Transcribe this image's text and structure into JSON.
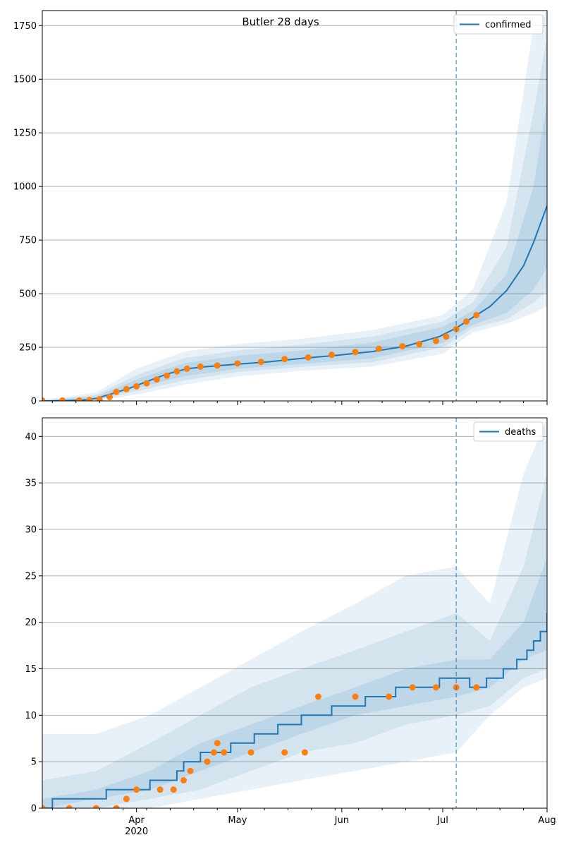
{
  "title": "Butler 28 days",
  "chart_data": [
    {
      "type": "line",
      "panel": "top",
      "legend": {
        "label": "confirmed",
        "placement": "top-right"
      },
      "xlim": [
        "2020-03-04",
        "2020-08-01"
      ],
      "ylim": [
        0,
        1820
      ],
      "yticks": [
        0,
        250,
        500,
        750,
        1000,
        1250,
        1500,
        1750
      ],
      "ytick_labels": [
        "0",
        "250",
        "500",
        "750",
        "1000",
        "1250",
        "1500",
        "1750"
      ],
      "grid": "horizontal",
      "xlabel": "",
      "ylabel": "",
      "vertical_marker_date": "2020-07-05",
      "series": [
        {
          "name": "confirmed",
          "role": "model median",
          "color": "#1f77b4",
          "dates": [
            "2020-03-04",
            "2020-03-10",
            "2020-03-16",
            "2020-03-20",
            "2020-03-25",
            "2020-03-30",
            "2020-04-04",
            "2020-04-10",
            "2020-04-16",
            "2020-04-22",
            "2020-04-30",
            "2020-05-10",
            "2020-05-20",
            "2020-05-30",
            "2020-06-10",
            "2020-06-20",
            "2020-06-30",
            "2020-07-05",
            "2020-07-10",
            "2020-07-15",
            "2020-07-20",
            "2020-07-25",
            "2020-07-28",
            "2020-08-01"
          ],
          "values": [
            0,
            1,
            4,
            12,
            35,
            60,
            90,
            125,
            150,
            160,
            170,
            182,
            198,
            212,
            230,
            255,
            300,
            340,
            390,
            440,
            515,
            630,
            740,
            910
          ]
        },
        {
          "name": "observed",
          "role": "data points",
          "color": "#ff7f0e",
          "dates": [
            "2020-03-04",
            "2020-03-10",
            "2020-03-15",
            "2020-03-18",
            "2020-03-21",
            "2020-03-24",
            "2020-03-26",
            "2020-03-29",
            "2020-04-01",
            "2020-04-04",
            "2020-04-07",
            "2020-04-10",
            "2020-04-13",
            "2020-04-16",
            "2020-04-20",
            "2020-04-25",
            "2020-05-01",
            "2020-05-08",
            "2020-05-15",
            "2020-05-22",
            "2020-05-29",
            "2020-06-05",
            "2020-06-12",
            "2020-06-19",
            "2020-06-24",
            "2020-06-29",
            "2020-07-02",
            "2020-07-05",
            "2020-07-08",
            "2020-07-11"
          ],
          "values": [
            2,
            2,
            2,
            4,
            8,
            18,
            42,
            55,
            68,
            82,
            100,
            118,
            138,
            150,
            160,
            165,
            175,
            182,
            195,
            203,
            215,
            228,
            243,
            255,
            265,
            280,
            300,
            335,
            370,
            400
          ]
        }
      ],
      "bands": [
        {
          "name": "outer",
          "opacity": 0.1,
          "dates": [
            "2020-03-04",
            "2020-03-20",
            "2020-04-01",
            "2020-04-15",
            "2020-05-01",
            "2020-05-20",
            "2020-06-10",
            "2020-07-01",
            "2020-07-10",
            "2020-07-20",
            "2020-07-28",
            "2020-08-01"
          ],
          "lower": [
            0,
            0,
            30,
            75,
            115,
            140,
            160,
            220,
            320,
            360,
            410,
            440
          ],
          "upper": [
            3,
            40,
            150,
            230,
            265,
            290,
            330,
            400,
            520,
            930,
            1750,
            1820
          ]
        },
        {
          "name": "middle",
          "opacity": 0.1,
          "dates": [
            "2020-03-04",
            "2020-03-20",
            "2020-04-01",
            "2020-04-15",
            "2020-05-01",
            "2020-05-20",
            "2020-06-10",
            "2020-07-01",
            "2020-07-10",
            "2020-07-20",
            "2020-07-28",
            "2020-08-01"
          ],
          "lower": [
            0,
            2,
            45,
            95,
            135,
            158,
            180,
            250,
            340,
            380,
            460,
            510
          ],
          "upper": [
            2,
            28,
            120,
            200,
            235,
            262,
            300,
            370,
            460,
            720,
            1350,
            1700
          ]
        },
        {
          "name": "inner",
          "opacity": 0.12,
          "dates": [
            "2020-03-04",
            "2020-03-20",
            "2020-04-01",
            "2020-04-15",
            "2020-05-01",
            "2020-05-20",
            "2020-06-10",
            "2020-07-01",
            "2020-07-10",
            "2020-07-20",
            "2020-07-28",
            "2020-08-01"
          ],
          "lower": [
            0,
            5,
            60,
            115,
            150,
            172,
            198,
            270,
            355,
            410,
            520,
            620
          ],
          "upper": [
            1,
            20,
            100,
            175,
            210,
            235,
            272,
            345,
            420,
            590,
            1000,
            1400
          ]
        }
      ]
    },
    {
      "type": "line",
      "panel": "bottom",
      "legend": {
        "label": "deaths",
        "placement": "top-right"
      },
      "xlim": [
        "2020-03-04",
        "2020-08-01"
      ],
      "ylim": [
        0,
        42
      ],
      "yticks": [
        0,
        5,
        10,
        15,
        20,
        25,
        30,
        35,
        40
      ],
      "ytick_labels": [
        "0",
        "5",
        "10",
        "15",
        "20",
        "25",
        "30",
        "35",
        "40"
      ],
      "xtick_labels": [
        "Apr",
        "May",
        "Jun",
        "Jul",
        "Aug"
      ],
      "xtick_dates": [
        "2020-04-01",
        "2020-05-01",
        "2020-06-01",
        "2020-07-01",
        "2020-08-01"
      ],
      "xtick_year": "2020",
      "grid": "horizontal",
      "xlabel": "",
      "ylabel": "",
      "vertical_marker_date": "2020-07-05",
      "series": [
        {
          "name": "deaths",
          "role": "model median (step)",
          "color": "#1f77b4",
          "dates": [
            "2020-03-04",
            "2020-03-07",
            "2020-03-23",
            "2020-03-31",
            "2020-04-05",
            "2020-04-13",
            "2020-04-15",
            "2020-04-20",
            "2020-04-25",
            "2020-04-29",
            "2020-05-06",
            "2020-05-13",
            "2020-05-20",
            "2020-05-29",
            "2020-06-08",
            "2020-06-17",
            "2020-06-30",
            "2020-07-05",
            "2020-07-09",
            "2020-07-14",
            "2020-07-19",
            "2020-07-23",
            "2020-07-26",
            "2020-07-28",
            "2020-07-30",
            "2020-08-01"
          ],
          "values": [
            0,
            1,
            2,
            2,
            3,
            4,
            5,
            6,
            6,
            7,
            8,
            9,
            10,
            11,
            12,
            13,
            14,
            14,
            13,
            14,
            15,
            16,
            17,
            18,
            19,
            21
          ]
        },
        {
          "name": "observed",
          "role": "data points",
          "color": "#ff7f0e",
          "dates": [
            "2020-03-04",
            "2020-03-12",
            "2020-03-20",
            "2020-03-26",
            "2020-03-29",
            "2020-04-01",
            "2020-04-08",
            "2020-04-12",
            "2020-04-15",
            "2020-04-17",
            "2020-04-22",
            "2020-04-24",
            "2020-04-25",
            "2020-04-27",
            "2020-05-05",
            "2020-05-15",
            "2020-05-21",
            "2020-05-25",
            "2020-06-05",
            "2020-06-15",
            "2020-06-22",
            "2020-06-29",
            "2020-07-05",
            "2020-07-11"
          ],
          "values": [
            0,
            0,
            0,
            0,
            1,
            2,
            2,
            2,
            3,
            4,
            5,
            6,
            7,
            6,
            6,
            6,
            6,
            12,
            12,
            12,
            13,
            13,
            13,
            13
          ]
        }
      ],
      "bands": [
        {
          "name": "outer",
          "opacity": 0.1,
          "dates": [
            "2020-03-04",
            "2020-03-20",
            "2020-04-05",
            "2020-04-20",
            "2020-05-05",
            "2020-05-20",
            "2020-06-05",
            "2020-06-20",
            "2020-07-05",
            "2020-07-15",
            "2020-07-25",
            "2020-08-01"
          ],
          "lower": [
            0,
            0,
            0,
            1,
            2,
            3,
            4,
            5,
            6,
            10,
            13,
            14
          ],
          "upper": [
            8,
            8,
            10,
            13,
            16,
            19,
            22,
            25,
            26,
            22,
            36,
            42
          ]
        },
        {
          "name": "middle",
          "opacity": 0.1,
          "dates": [
            "2020-03-04",
            "2020-03-20",
            "2020-04-05",
            "2020-04-20",
            "2020-05-05",
            "2020-05-20",
            "2020-06-05",
            "2020-06-20",
            "2020-07-05",
            "2020-07-15",
            "2020-07-25",
            "2020-08-01"
          ],
          "lower": [
            0,
            0,
            1,
            2,
            4,
            6,
            7,
            9,
            10,
            11,
            14,
            15
          ],
          "upper": [
            3,
            4,
            7,
            10,
            13,
            15,
            17,
            19,
            21,
            18,
            26,
            36
          ]
        },
        {
          "name": "inner",
          "opacity": 0.12,
          "dates": [
            "2020-03-04",
            "2020-03-20",
            "2020-04-05",
            "2020-04-20",
            "2020-05-05",
            "2020-05-20",
            "2020-06-05",
            "2020-06-20",
            "2020-07-05",
            "2020-07-15",
            "2020-07-25",
            "2020-08-01"
          ],
          "lower": [
            0,
            1,
            2,
            4,
            6,
            8,
            10,
            11,
            12,
            13,
            16,
            17
          ],
          "upper": [
            1,
            2,
            4,
            7,
            9,
            11,
            13,
            15,
            16,
            16,
            20,
            27
          ]
        }
      ]
    }
  ]
}
